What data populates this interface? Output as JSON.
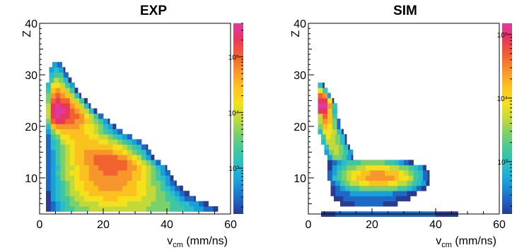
{
  "chart_data": [
    {
      "type": "heatmap",
      "title": "EXP",
      "xlabel": "v_cm (mm/ns)",
      "xlabel_main": "v",
      "xlabel_sub": "cm",
      "xlabel_rest": " (mm/ns)",
      "ylabel": "Z",
      "xlim": [
        0,
        60
      ],
      "ylim": [
        3,
        40
      ],
      "x_ticks": [
        0,
        20,
        40,
        60
      ],
      "y_ticks": [
        10,
        20,
        30,
        40
      ],
      "colorbar": {
        "scale": "log",
        "range": [
          150,
          400000
        ],
        "ticks": [
          1000,
          10000,
          100000
        ],
        "tick_labels": [
          "10³",
          "10⁴",
          "10⁵"
        ]
      },
      "bin_width_x": 1.5,
      "bin_height_z": 1,
      "z_rows": [
        {
          "z": 4,
          "x_range": [
            2,
            56
          ],
          "peak_x": 22,
          "peak_value": 9000
        },
        {
          "z": 5,
          "x_range": [
            2,
            53
          ],
          "peak_x": 22,
          "peak_value": 12000
        },
        {
          "z": 6,
          "x_range": [
            2,
            49
          ],
          "peak_x": 22,
          "peak_value": 20000
        },
        {
          "z": 7,
          "x_range": [
            2,
            47
          ],
          "peak_x": 22,
          "peak_value": 30000
        },
        {
          "z": 8,
          "x_range": [
            2,
            45
          ],
          "peak_x": 22,
          "peak_value": 40000
        },
        {
          "z": 9,
          "x_range": [
            2,
            43
          ],
          "peak_x": 22,
          "peak_value": 50000
        },
        {
          "z": 10,
          "x_range": [
            2,
            42
          ],
          "peak_x": 22,
          "peak_value": 60000
        },
        {
          "z": 11,
          "x_range": [
            2,
            41
          ],
          "peak_x": 22,
          "peak_value": 70000
        },
        {
          "z": 12,
          "x_range": [
            2,
            40
          ],
          "peak_x": 24,
          "peak_value": 90000
        },
        {
          "z": 13,
          "x_range": [
            2,
            38
          ],
          "peak_x": 23,
          "peak_value": 100000
        },
        {
          "z": 14,
          "x_range": [
            2,
            36
          ],
          "peak_x": 21,
          "peak_value": 80000
        },
        {
          "z": 15,
          "x_range": [
            2,
            35
          ],
          "peak_x": 19,
          "peak_value": 50000
        },
        {
          "z": 16,
          "x_range": [
            2,
            34
          ],
          "peak_x": 17,
          "peak_value": 35000
        },
        {
          "z": 17,
          "x_range": [
            2,
            32
          ],
          "peak_x": 14,
          "peak_value": 25000
        },
        {
          "z": 18,
          "x_range": [
            2,
            29
          ],
          "peak_x": 11,
          "peak_value": 25000
        },
        {
          "z": 19,
          "x_range": [
            2,
            26
          ],
          "peak_x": 8,
          "peak_value": 30000
        },
        {
          "z": 20,
          "x_range": [
            2,
            24
          ],
          "peak_x": 6,
          "peak_value": 60000
        },
        {
          "z": 21,
          "x_range": [
            2,
            22
          ],
          "peak_x": 5,
          "peak_value": 150000
        },
        {
          "z": 22,
          "x_range": [
            2,
            20
          ],
          "peak_x": 5,
          "peak_value": 250000
        },
        {
          "z": 23,
          "x_range": [
            2,
            18
          ],
          "peak_x": 5,
          "peak_value": 300000
        },
        {
          "z": 24,
          "x_range": [
            2,
            16
          ],
          "peak_x": 5,
          "peak_value": 250000
        },
        {
          "z": 25,
          "x_range": [
            2,
            15
          ],
          "peak_x": 5,
          "peak_value": 150000
        },
        {
          "z": 26,
          "x_range": [
            2,
            13
          ],
          "peak_x": 5,
          "peak_value": 80000
        },
        {
          "z": 27,
          "x_range": [
            2,
            12
          ],
          "peak_x": 5,
          "peak_value": 40000
        },
        {
          "z": 28,
          "x_range": [
            2,
            11
          ],
          "peak_x": 5,
          "peak_value": 15000
        },
        {
          "z": 29,
          "x_range": [
            3,
            10
          ],
          "peak_x": 5,
          "peak_value": 7000
        },
        {
          "z": 30,
          "x_range": [
            3,
            9
          ],
          "peak_x": 5,
          "peak_value": 3000
        },
        {
          "z": 31,
          "x_range": [
            3,
            8
          ],
          "peak_x": 5,
          "peak_value": 1500
        },
        {
          "z": 32,
          "x_range": [
            4,
            7
          ],
          "peak_x": 5,
          "peak_value": 700
        }
      ]
    },
    {
      "type": "heatmap",
      "title": "SIM",
      "xlabel": "v_cm (mm/ns)",
      "xlabel_main": "v",
      "xlabel_sub": "cm",
      "xlabel_rest": " (mm/ns)",
      "ylabel": "Z",
      "xlim": [
        0,
        60
      ],
      "ylim": [
        3,
        40
      ],
      "x_ticks": [
        0,
        20,
        40,
        60
      ],
      "y_ticks": [
        10,
        20,
        30,
        40
      ],
      "colorbar": {
        "scale": "log",
        "range": [
          150,
          150000
        ],
        "ticks": [
          1000,
          10000,
          100000
        ],
        "tick_labels": [
          "10³",
          "10⁴",
          "10⁵"
        ]
      },
      "bin_width_x": 1.5,
      "bin_height_z": 1,
      "z_rows": [
        {
          "z": 3,
          "x_range": [
            4,
            47
          ],
          "peak_x": 20,
          "peak_value": 400
        },
        {
          "z": 5,
          "x_range": [
            10,
            28
          ],
          "peak_x": 18,
          "peak_value": 300
        },
        {
          "z": 6,
          "x_range": [
            8,
            32
          ],
          "peak_x": 18,
          "peak_value": 400
        },
        {
          "z": 7,
          "x_range": [
            7,
            34
          ],
          "peak_x": 18,
          "peak_value": 600
        },
        {
          "z": 8,
          "x_range": [
            7,
            37
          ],
          "peak_x": 22,
          "peak_value": 3000
        },
        {
          "z": 9,
          "x_range": [
            7,
            38
          ],
          "peak_x": 22,
          "peak_value": 12000
        },
        {
          "z": 10,
          "x_range": [
            6,
            38
          ],
          "peak_x": 22,
          "peak_value": 25000
        },
        {
          "z": 11,
          "x_range": [
            6,
            38
          ],
          "peak_x": 22,
          "peak_value": 20000
        },
        {
          "z": 12,
          "x_range": [
            6,
            37
          ],
          "peak_x": 22,
          "peak_value": 8000
        },
        {
          "z": 13,
          "x_range": [
            6,
            33
          ],
          "peak_x": 20,
          "peak_value": 2500
        },
        {
          "z": 14,
          "x_range": [
            6,
            14
          ],
          "peak_x": 9,
          "peak_value": 3000
        },
        {
          "z": 15,
          "x_range": [
            5,
            14
          ],
          "peak_x": 9,
          "peak_value": 4000
        },
        {
          "z": 16,
          "x_range": [
            5,
            13
          ],
          "peak_x": 8,
          "peak_value": 5000
        },
        {
          "z": 17,
          "x_range": [
            4,
            12
          ],
          "peak_x": 7,
          "peak_value": 6000
        },
        {
          "z": 18,
          "x_range": [
            4,
            12
          ],
          "peak_x": 6,
          "peak_value": 8000
        },
        {
          "z": 19,
          "x_range": [
            3,
            11
          ],
          "peak_x": 6,
          "peak_value": 10000
        },
        {
          "z": 20,
          "x_range": [
            3,
            10
          ],
          "peak_x": 5,
          "peak_value": 15000
        },
        {
          "z": 21,
          "x_range": [
            3,
            10
          ],
          "peak_x": 5,
          "peak_value": 20000
        },
        {
          "z": 22,
          "x_range": [
            3,
            9
          ],
          "peak_x": 5,
          "peak_value": 40000
        },
        {
          "z": 23,
          "x_range": [
            3,
            9
          ],
          "peak_x": 4,
          "peak_value": 80000
        },
        {
          "z": 24,
          "x_range": [
            3,
            9
          ],
          "peak_x": 4,
          "peak_value": 130000
        },
        {
          "z": 25,
          "x_range": [
            3,
            8
          ],
          "peak_x": 4,
          "peak_value": 110000
        },
        {
          "z": 26,
          "x_range": [
            3,
            7
          ],
          "peak_x": 4,
          "peak_value": 50000
        },
        {
          "z": 27,
          "x_range": [
            3,
            6
          ],
          "peak_x": 4,
          "peak_value": 8000
        },
        {
          "z": 28,
          "x_range": [
            3,
            5
          ],
          "peak_x": 4,
          "peak_value": 1000
        }
      ]
    }
  ],
  "palette": [
    "#2a3b92",
    "#1c69c6",
    "#1aa0d8",
    "#29bcc9",
    "#3ec7a1",
    "#7ad06a",
    "#c3d93a",
    "#f4e11b",
    "#fbc21f",
    "#f7962a",
    "#f2622f",
    "#e9365d",
    "#dd3aa6"
  ]
}
